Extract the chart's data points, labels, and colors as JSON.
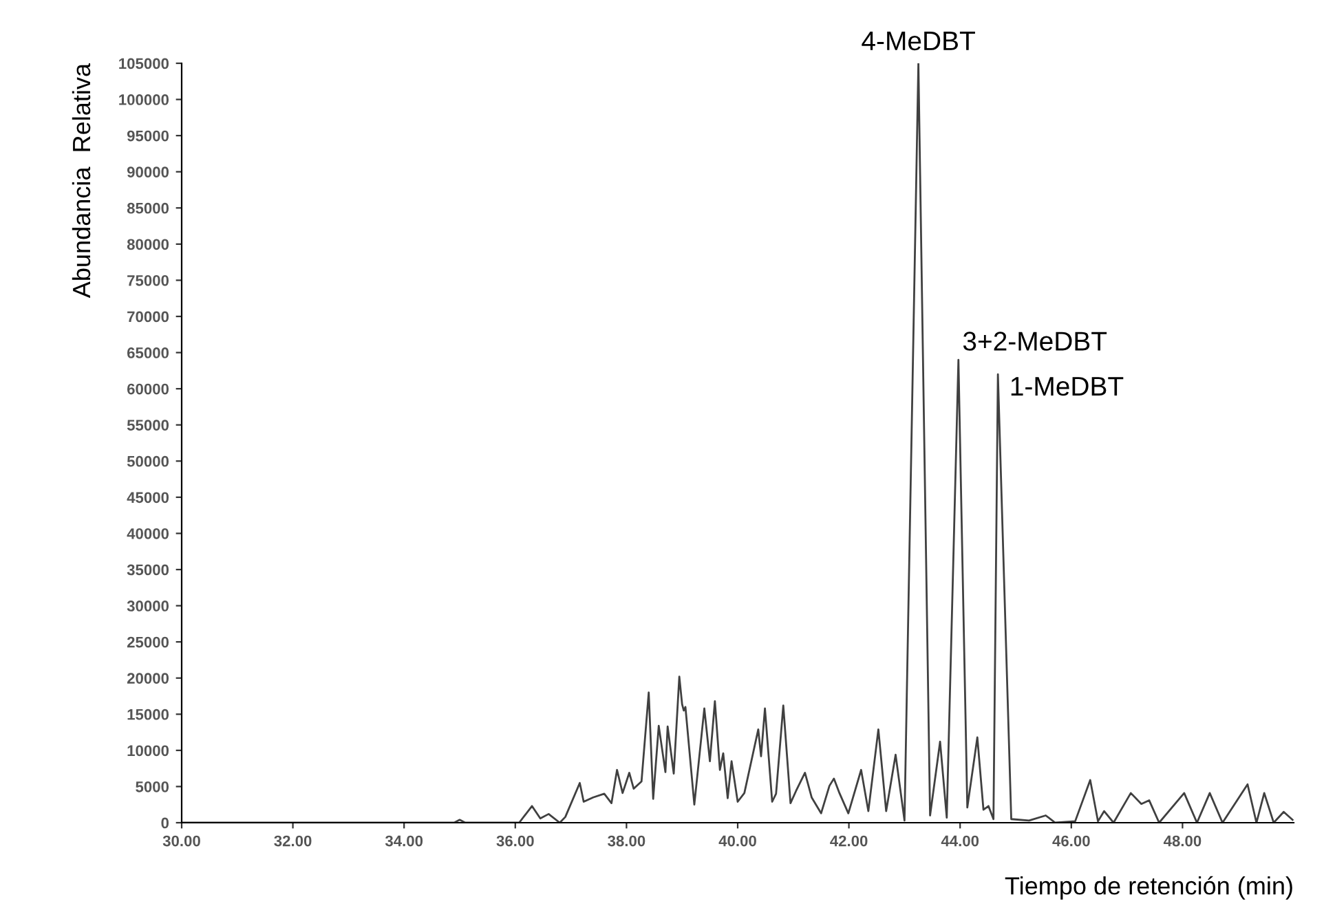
{
  "chart_data": {
    "type": "line",
    "xlabel": "Tiempo de retención (min)",
    "ylabel": "Abundancia  Relativa",
    "x": [
      30.0,
      34.9,
      35.0,
      35.1,
      35.8,
      36.07,
      36.3,
      36.45,
      36.6,
      36.8,
      36.9,
      37.16,
      37.23,
      37.4,
      37.6,
      37.73,
      37.83,
      37.93,
      38.05,
      38.13,
      38.27,
      38.4,
      38.48,
      38.58,
      38.7,
      38.74,
      38.85,
      38.95,
      39.0,
      39.03,
      39.06,
      39.22,
      39.4,
      39.5,
      39.59,
      39.68,
      39.74,
      39.82,
      39.89,
      40.0,
      40.12,
      40.37,
      40.42,
      40.49,
      40.62,
      40.69,
      40.82,
      40.95,
      41.05,
      41.21,
      41.33,
      41.5,
      41.65,
      41.73,
      41.83,
      41.99,
      42.22,
      42.35,
      42.53,
      42.67,
      42.84,
      43.0,
      43.25,
      43.46,
      43.64,
      43.76,
      43.97,
      44.13,
      44.31,
      44.42,
      44.51,
      44.6,
      44.68,
      44.92,
      45.24,
      45.54,
      45.71,
      46.07,
      46.34,
      46.48,
      46.59,
      46.76,
      47.07,
      47.26,
      47.4,
      47.58,
      48.03,
      48.26,
      48.49,
      48.72,
      49.17,
      49.33,
      49.47,
      49.64,
      49.82,
      49.98
    ],
    "series": [
      {
        "color": "#404040",
        "values": [
          0,
          0,
          400,
          0,
          0,
          0,
          2300,
          600,
          1200,
          0,
          800,
          5500,
          2900,
          3500,
          4000,
          2700,
          7300,
          4100,
          6900,
          4700,
          5700,
          18000,
          3300,
          13400,
          7000,
          13300,
          6800,
          20200,
          16400,
          15500,
          16000,
          2500,
          15800,
          8500,
          16800,
          7300,
          9600,
          3400,
          8500,
          2900,
          4100,
          12900,
          9200,
          15800,
          2900,
          4000,
          16200,
          2700,
          4400,
          6900,
          3500,
          1300,
          5100,
          6100,
          4100,
          1300,
          7300,
          1600,
          12900,
          1600,
          9400,
          300,
          105000,
          1000,
          11200,
          700,
          64000,
          2100,
          11800,
          1800,
          2300,
          500,
          62000,
          500,
          300,
          1000,
          0,
          200,
          5900,
          200,
          1600,
          0,
          4100,
          2600,
          3100,
          0,
          4100,
          0,
          4100,
          0,
          5300,
          0,
          4100,
          0,
          1500,
          400
        ]
      }
    ],
    "xlim": [
      30,
      50
    ],
    "ylim": [
      0,
      105000
    ],
    "xticks": [
      {
        "value": 30,
        "label": "30.00"
      },
      {
        "value": 32,
        "label": "32.00"
      },
      {
        "value": 34,
        "label": "34.00"
      },
      {
        "value": 36,
        "label": "36.00"
      },
      {
        "value": 38,
        "label": "38.00"
      },
      {
        "value": 40,
        "label": "40.00"
      },
      {
        "value": 42,
        "label": "42.00"
      },
      {
        "value": 44,
        "label": "44.00"
      },
      {
        "value": 46,
        "label": "46.00"
      },
      {
        "value": 48,
        "label": "48.00"
      }
    ],
    "yticks": [
      0,
      5000,
      10000,
      15000,
      20000,
      25000,
      30000,
      35000,
      40000,
      45000,
      50000,
      55000,
      60000,
      65000,
      70000,
      75000,
      80000,
      85000,
      90000,
      95000,
      100000,
      105000
    ],
    "annotations": [
      {
        "text": "4-MeDBT",
        "x": 43.25,
        "y": 105000
      },
      {
        "text": "3+2-MeDBT",
        "x": 43.97,
        "y": 64000
      },
      {
        "text": "1-MeDBT",
        "x": 44.68,
        "y": 62000
      }
    ],
    "grid": false,
    "legend": false,
    "marker": "none",
    "line_style": "solid"
  }
}
